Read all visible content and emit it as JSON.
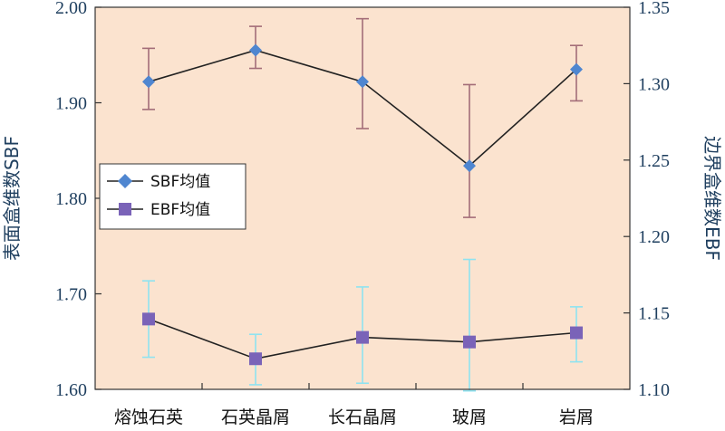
{
  "chart_data": {
    "type": "line",
    "categories": [
      "熔蚀石英",
      "石英晶屑",
      "长石晶屑",
      "玻屑",
      "岩屑"
    ],
    "series": [
      {
        "name": "SBF均值",
        "axis": "left",
        "values": [
          1.922,
          1.955,
          1.922,
          1.834,
          1.935
        ],
        "error_low": [
          1.893,
          1.936,
          1.873,
          1.78,
          1.902
        ],
        "error_high": [
          1.957,
          1.98,
          1.988,
          1.919,
          1.96
        ],
        "marker": "diamond",
        "color": "#4f86d0",
        "error_color": "#a36d78"
      },
      {
        "name": "EBF均值",
        "axis": "right",
        "values": [
          1.146,
          1.12,
          1.134,
          1.131,
          1.137
        ],
        "error_low": [
          1.121,
          1.103,
          1.104,
          1.099,
          1.118
        ],
        "error_high": [
          1.171,
          1.136,
          1.167,
          1.185,
          1.154
        ],
        "marker": "square",
        "color": "#7a63b8",
        "error_color": "#8fe3f0"
      }
    ],
    "yleft": {
      "label": "表面盒维数SBF",
      "ylim": [
        1.6,
        2.0
      ],
      "ticks": [
        "1.60",
        "1.70",
        "1.80",
        "1.90",
        "2.00"
      ]
    },
    "yright": {
      "label": "边界盒维数EBF",
      "ylim": [
        1.1,
        1.35
      ],
      "ticks": [
        "1.10",
        "1.15",
        "1.20",
        "1.25",
        "1.30",
        "1.35"
      ]
    },
    "legend": {
      "position": "middle-left",
      "labels": [
        "SBF均值",
        "EBF均值"
      ]
    },
    "plot_background": "#fbe3cf",
    "line_color": "#222222",
    "axis_color": "#333333"
  }
}
